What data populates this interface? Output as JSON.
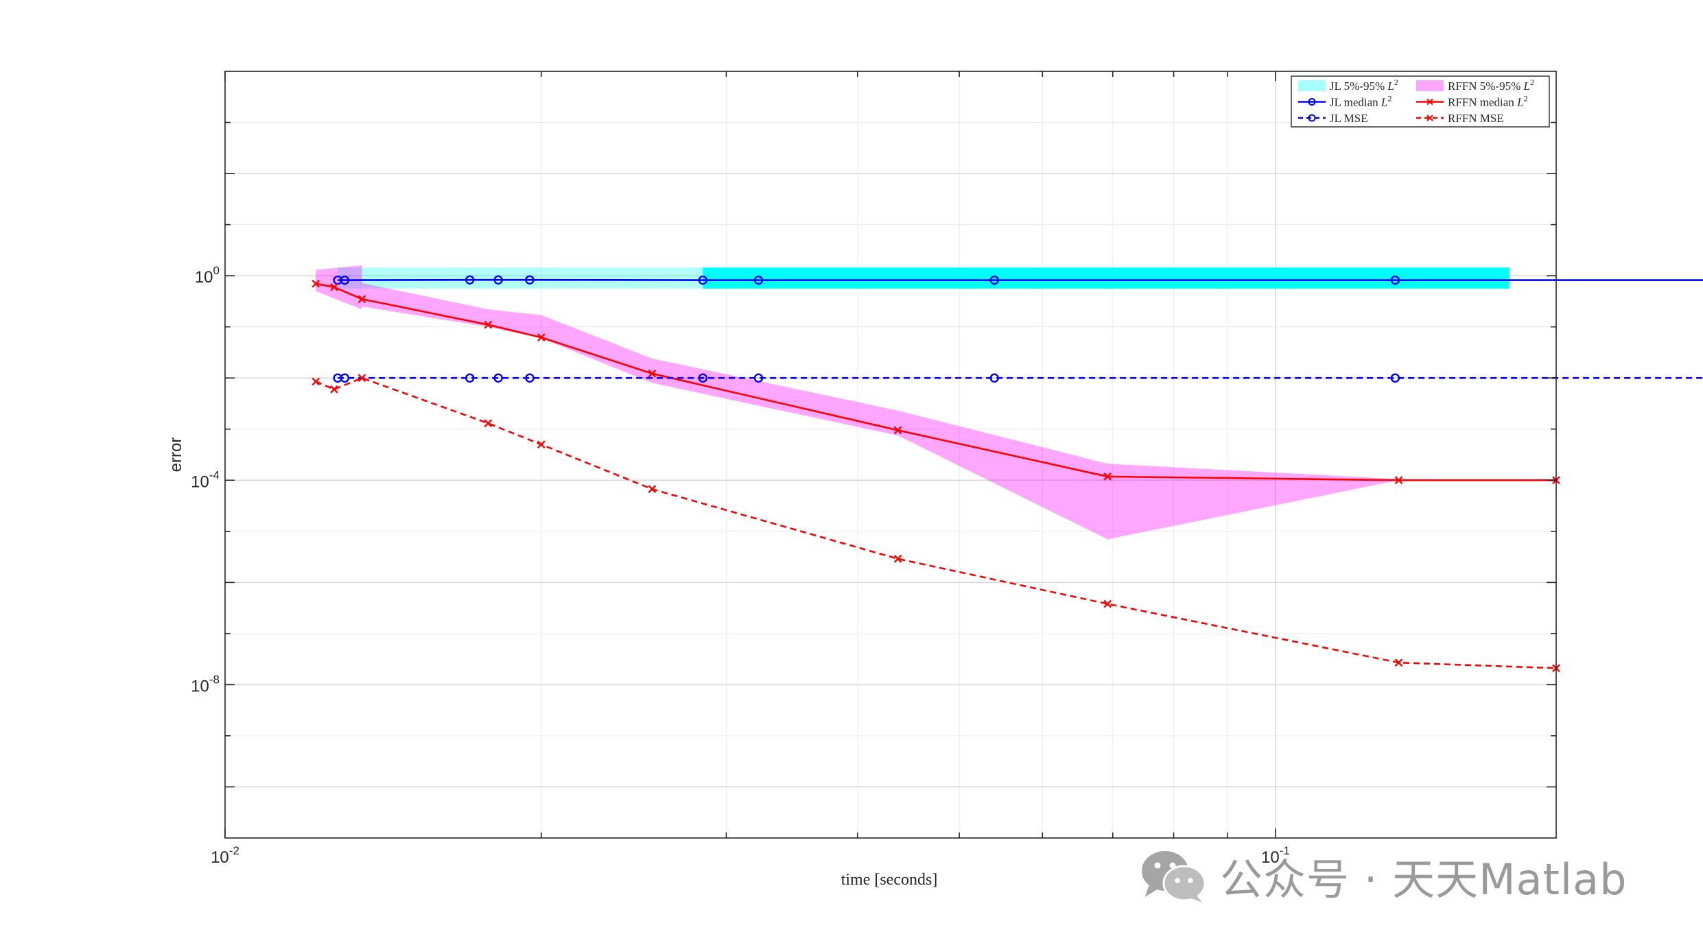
{
  "chart_data": {
    "type": "line",
    "xlabel": "time [seconds]",
    "ylabel": "error",
    "xscale": "log",
    "yscale": "log",
    "xlim": [
      0.01,
      0.185
    ],
    "ylim": [
      1e-11,
      10000
    ],
    "xticks": [
      0.01,
      0.1
    ],
    "xtick_labels": [
      {
        "base": "10",
        "exp": "-2"
      },
      {
        "base": "10",
        "exp": "-1"
      }
    ],
    "yticks": [
      1e-08,
      0.0001,
      1
    ],
    "ytick_labels": [
      {
        "base": "10",
        "exp": "-8"
      },
      {
        "base": "10",
        "exp": "-4"
      },
      {
        "base": "10",
        "exp": "0"
      }
    ],
    "grid": true,
    "minor_grid": true,
    "legend": {
      "placement": "top-right",
      "columns": 2,
      "entries": [
        {
          "label": "JL 5%-95% ",
          "math": "L",
          "sup": "2",
          "kind": "patch",
          "color": "#00ffff"
        },
        {
          "label": "RFFN 5%-95% ",
          "math": "L",
          "sup": "2",
          "kind": "patch",
          "color": "#ff00ff"
        },
        {
          "label": "JL median ",
          "math": "L",
          "sup": "2",
          "kind": "line",
          "color": "#0000ff",
          "marker": "circle",
          "dash": "solid"
        },
        {
          "label": "RFFN median ",
          "math": "L",
          "sup": "2",
          "kind": "line",
          "color": "#ff0000",
          "marker": "x",
          "dash": "solid"
        },
        {
          "label": "JL MSE",
          "math": "",
          "sup": "",
          "kind": "line",
          "color": "#0000ff",
          "marker": "circle",
          "dash": "dashed"
        },
        {
          "label": "RFFN MSE",
          "math": "",
          "sup": "",
          "kind": "line",
          "color": "#ff0000",
          "marker": "x",
          "dash": "dashed"
        }
      ]
    },
    "bands": [
      {
        "name": "JL 5%-95% L2",
        "color": "#00ffff",
        "opacity": 0.3,
        "x": [
          0.0128,
          0.0135,
          0.0285,
          0.0285,
          0.167
        ],
        "upper": [
          1.45,
          1.45,
          1.45,
          1.45,
          1.45
        ],
        "lower": [
          0.56,
          0.56,
          0.56,
          0.56,
          0.56
        ]
      },
      {
        "name": "JL 5%-95% L2 (main)",
        "color": "#00ffff",
        "opacity": 1.0,
        "x": [
          0.0285,
          0.167
        ],
        "upper": [
          1.45,
          1.45
        ],
        "lower": [
          0.56,
          0.56
        ]
      },
      {
        "name": "RFFN 5%-95% L2",
        "color": "#ff00ff",
        "opacity": 0.35,
        "x": [
          0.0122,
          0.0135,
          0.0135,
          0.0178,
          0.02,
          0.0255,
          0.0437,
          0.0692,
          0.131,
          0.185
        ],
        "upper": [
          1.3,
          1.6,
          0.72,
          0.22,
          0.17,
          0.024,
          0.0023,
          0.00021,
          0.000105,
          0.0001
        ],
        "lower": [
          0.5,
          0.22,
          0.25,
          0.1,
          0.06,
          0.008,
          0.00075,
          7e-06,
          0.0001,
          0.0001
        ]
      }
    ],
    "series": [
      {
        "name": "JL median L2",
        "color": "#0000ff",
        "marker": "circle",
        "dash": "solid",
        "x": [
          0.0128,
          0.013,
          0.0171,
          0.0182,
          0.0195,
          0.0285,
          0.0322,
          0.054,
          0.13,
          0.327
        ],
        "y": [
          0.82,
          0.82,
          0.83,
          0.83,
          0.83,
          0.82,
          0.82,
          0.82,
          0.82,
          0.82
        ]
      },
      {
        "name": "RFFN median L2",
        "color": "#ff0000",
        "marker": "x",
        "dash": "solid",
        "x": [
          0.0122,
          0.0127,
          0.0135,
          0.0178,
          0.02,
          0.0255,
          0.0437,
          0.0692,
          0.131,
          0.185
        ],
        "y": [
          0.7,
          0.6,
          0.35,
          0.11,
          0.062,
          0.0122,
          0.00095,
          0.000118,
          0.0001,
          0.0001
        ]
      },
      {
        "name": "JL MSE",
        "color": "#0000ff",
        "marker": "circle",
        "dash": "dashed",
        "x": [
          0.0128,
          0.013,
          0.0171,
          0.0182,
          0.0195,
          0.0285,
          0.0322,
          0.054,
          0.13,
          0.327
        ],
        "y": [
          0.01,
          0.01,
          0.01,
          0.01,
          0.01,
          0.01,
          0.01,
          0.01,
          0.01,
          0.01
        ]
      },
      {
        "name": "RFFN MSE",
        "color": "#ff0000",
        "marker": "x",
        "dash": "dashed",
        "x": [
          0.0122,
          0.0127,
          0.0135,
          0.0178,
          0.02,
          0.0255,
          0.0437,
          0.0692,
          0.131,
          0.185
        ],
        "y": [
          0.0085,
          0.006,
          0.01,
          0.0013,
          0.0005,
          6.7e-05,
          2.9e-06,
          3.8e-07,
          2.7e-08,
          2.1e-08
        ]
      }
    ]
  },
  "watermark": {
    "text": "公众号 · 天天Matlab",
    "icon": "wechat-icon"
  }
}
